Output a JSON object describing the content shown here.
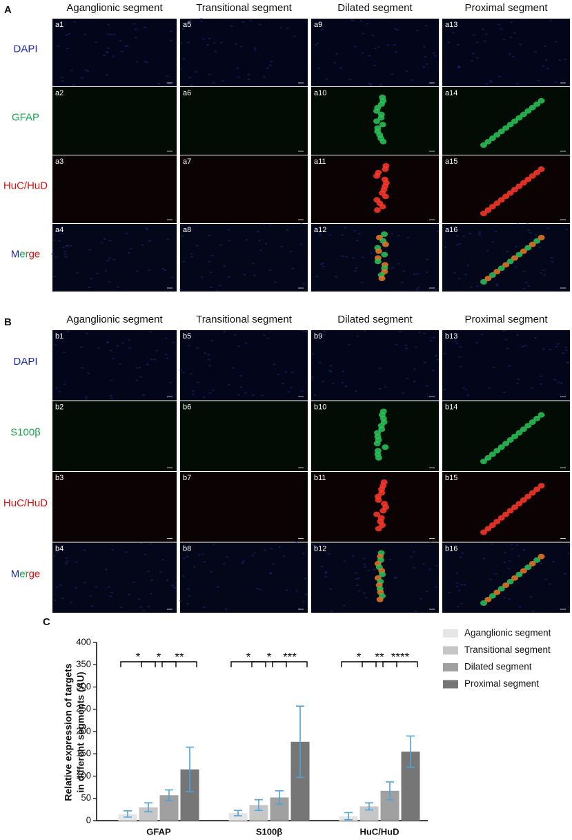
{
  "panel_a": {
    "label": "A",
    "columns": [
      "Aganglionic segment",
      "Transitional segment",
      "Dilated segment",
      "Proximal segment"
    ],
    "rows": [
      "DAPI",
      "GFAP",
      "HuC/HuD",
      "Merge"
    ],
    "tiles": [
      [
        "a1",
        "a5",
        "a9",
        "a13"
      ],
      [
        "a2",
        "a6",
        "a10",
        "a14"
      ],
      [
        "a3",
        "a7",
        "a11",
        "a15"
      ],
      [
        "a4",
        "a8",
        "a12",
        "a16"
      ]
    ]
  },
  "panel_b": {
    "label": "B",
    "columns": [
      "Aganglionic segment",
      "Transitional segment",
      "Dilated segment",
      "Proximal segment"
    ],
    "rows": [
      "DAPI",
      "S100β",
      "HuC/HuD",
      "Merge"
    ],
    "tiles": [
      [
        "b1",
        "b5",
        "b9",
        "b13"
      ],
      [
        "b2",
        "b6",
        "b10",
        "b14"
      ],
      [
        "b3",
        "b7",
        "b11",
        "b15"
      ],
      [
        "b4",
        "b8",
        "b12",
        "b16"
      ]
    ]
  },
  "chart_data": {
    "type": "bar",
    "panel_label": "C",
    "ylabel": [
      "Relative expression of targets",
      "in different segments (AU)"
    ],
    "categories": [
      "GFAP",
      "S100β",
      "HuC/HuD"
    ],
    "series": [
      {
        "name": "Aganglionic segment",
        "color": "#e6e6e6",
        "values": [
          15,
          17,
          10
        ],
        "errors": [
          7,
          6,
          8
        ]
      },
      {
        "name": "Transitional segment",
        "color": "#c6c6c6",
        "values": [
          30,
          35,
          32
        ],
        "errors": [
          10,
          12,
          8
        ]
      },
      {
        "name": "Dilated segment",
        "color": "#a0a0a0",
        "values": [
          57,
          52,
          67
        ],
        "errors": [
          12,
          15,
          20
        ]
      },
      {
        "name": "Proximal segment",
        "color": "#767676",
        "values": [
          115,
          177,
          155
        ],
        "errors": [
          50,
          80,
          35
        ]
      }
    ],
    "significance": [
      [
        "*",
        "*",
        "**"
      ],
      [
        "*",
        "*",
        "***"
      ],
      [
        "*",
        "**",
        "****"
      ]
    ],
    "error_color": "#4ea3dc",
    "ylim": [
      0,
      400
    ],
    "yticks": [
      0,
      50,
      100,
      150,
      200,
      250,
      300,
      350,
      400
    ]
  }
}
